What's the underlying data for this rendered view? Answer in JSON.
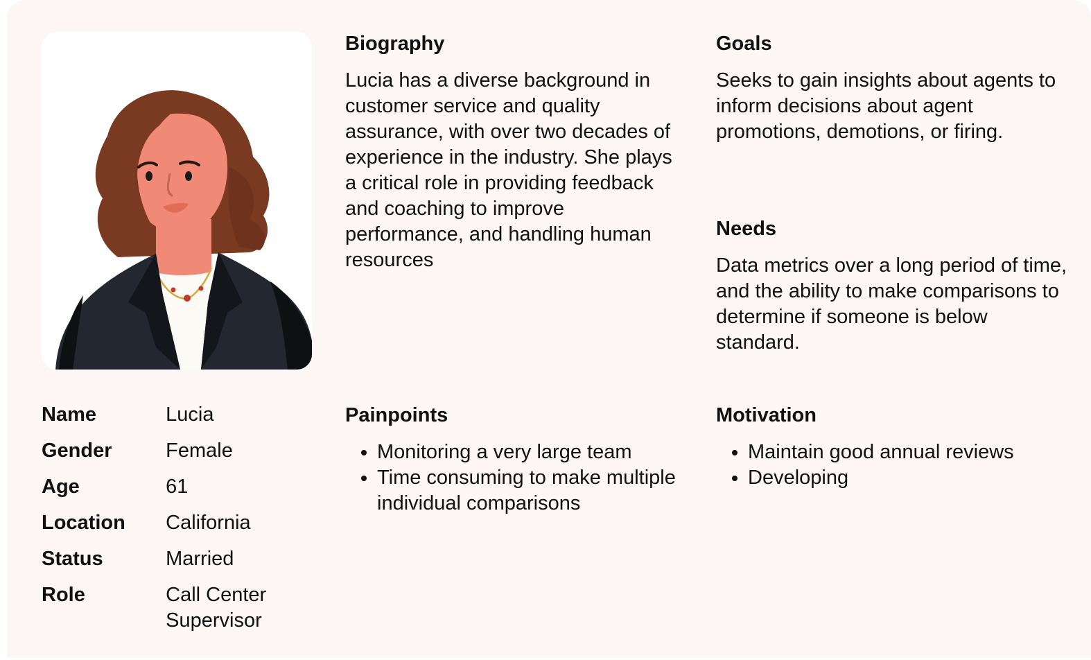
{
  "profile": {
    "image_icon": "woman-avatar-illustration",
    "facts": [
      {
        "label": "Name",
        "value": "Lucia"
      },
      {
        "label": "Gender",
        "value": "Female"
      },
      {
        "label": "Age",
        "value": "61"
      },
      {
        "label": "Location",
        "value": "California"
      },
      {
        "label": "Status",
        "value": "Married"
      },
      {
        "label": "Role",
        "value": "Call Center Supervisor"
      }
    ]
  },
  "biography": {
    "title": "Biography",
    "text": "Lucia has a diverse background in customer service and quality assurance, with over two decades of experience in the industry. She plays a critical role in providing feedback and coaching to improve performance, and handling human resources"
  },
  "goals": {
    "title": "Goals",
    "text": "Seeks to gain insights about agents to inform decisions about agent promotions, demotions, or firing."
  },
  "needs": {
    "title": "Needs",
    "text": "Data metrics over a long period of time, and the ability to make comparisons to determine if someone is below standard."
  },
  "painpoints": {
    "title": "Painpoints",
    "items": [
      "Monitoring a very large team",
      "Time consuming to make multiple individual comparisons"
    ]
  },
  "motivation": {
    "title": "Motivation",
    "items": [
      "Maintain good annual reviews",
      "Developing"
    ]
  },
  "colors": {
    "card_bg": "#fcf6f5",
    "hair": "#7a3a22",
    "skin": "#f08a76",
    "jacket": "#23272f",
    "shirt": "#fbfaf5"
  }
}
